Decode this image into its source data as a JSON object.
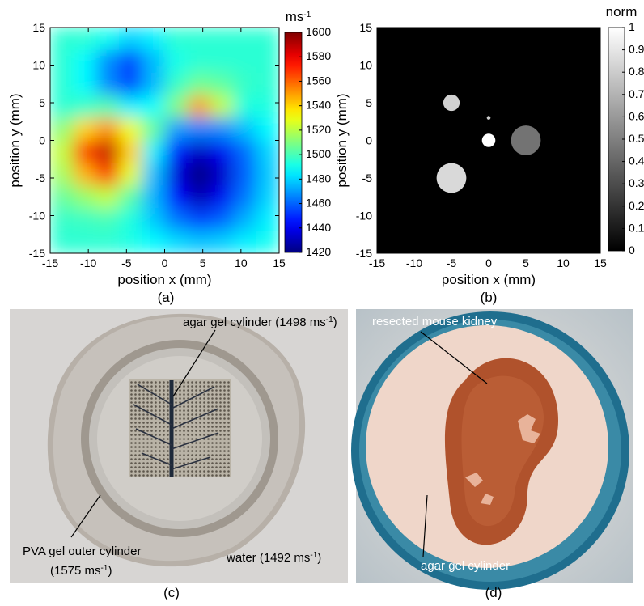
{
  "chart_data": [
    {
      "type": "heatmap",
      "caption": "(a)",
      "xlabel": "position x (mm)",
      "ylabel": "position y (mm)",
      "colorbar_label": {
        "text": "ms",
        "sup": "-1"
      },
      "colormap": "jet",
      "xlim": [
        -15,
        15
      ],
      "ylim": [
        -15,
        15
      ],
      "xticks": [
        -15,
        -10,
        -5,
        0,
        5,
        10,
        15
      ],
      "yticks": [
        -15,
        -10,
        -5,
        0,
        5,
        10,
        15
      ],
      "clim": [
        1420,
        1600
      ],
      "cticks": [
        1420,
        1440,
        1460,
        1480,
        1500,
        1520,
        1540,
        1560,
        1580,
        1600
      ],
      "x": [
        -13.5,
        -10.5,
        -7.5,
        -4.5,
        -1.5,
        1.5,
        4.5,
        7.5,
        10.5,
        13.5
      ],
      "y": [
        13.5,
        10.5,
        7.5,
        4.5,
        1.5,
        -1.5,
        -4.5,
        -7.5,
        -10.5,
        -13.5
      ],
      "z": [
        [
          1495,
          1495,
          1490,
          1480,
          1485,
          1495,
          1495,
          1495,
          1495,
          1495
        ],
        [
          1495,
          1487,
          1467,
          1453,
          1475,
          1491,
          1495,
          1495,
          1495,
          1495
        ],
        [
          1495,
          1487,
          1467,
          1453,
          1475,
          1497,
          1507,
          1504,
          1497,
          1495
        ],
        [
          1495,
          1497,
          1501,
          1485,
          1488,
          1510,
          1550,
          1522,
          1493,
          1493
        ],
        [
          1512,
          1540,
          1552,
          1530,
          1505,
          1470,
          1465,
          1467,
          1476,
          1487
        ],
        [
          1522,
          1568,
          1588,
          1541,
          1485,
          1446,
          1432,
          1440,
          1461,
          1480
        ],
        [
          1516,
          1546,
          1569,
          1528,
          1476,
          1436,
          1420,
          1433,
          1459,
          1478
        ],
        [
          1505,
          1514,
          1522,
          1503,
          1474,
          1443,
          1429,
          1440,
          1463,
          1480
        ],
        [
          1497,
          1498,
          1500,
          1493,
          1478,
          1463,
          1454,
          1459,
          1473,
          1485
        ],
        [
          1495,
          1495,
          1495,
          1492,
          1487,
          1481,
          1477,
          1479,
          1485,
          1490
        ]
      ]
    },
    {
      "type": "discs",
      "caption": "(b)",
      "xlabel": "position x (mm)",
      "ylabel": "position y (mm)",
      "colorbar_label": {
        "text": "norm"
      },
      "colormap": "gray",
      "background": 0,
      "xlim": [
        -15,
        15
      ],
      "ylim": [
        -15,
        15
      ],
      "xticks": [
        -15,
        -10,
        -5,
        0,
        5,
        10,
        15
      ],
      "yticks": [
        -15,
        -10,
        -5,
        0,
        5,
        10,
        15
      ],
      "clim": [
        0,
        1
      ],
      "cticks": [
        0,
        0.1,
        0.2,
        0.3,
        0.4,
        0.5,
        0.6,
        0.7,
        0.8,
        0.9,
        1
      ],
      "x": [
        -5,
        0,
        0,
        5,
        -5
      ],
      "y": [
        5,
        3,
        0,
        0,
        -5
      ],
      "radius": [
        1.1,
        0.25,
        0.9,
        2,
        2
      ],
      "values": [
        0.82,
        0.8,
        1,
        0.45,
        0.85
      ]
    }
  ],
  "photos": [
    {
      "caption": "(c)",
      "annotations": [
        [
          "agar gel cylinder (1498 ms",
          "-1",
          ")"
        ],
        [
          "PVA gel outer cylinder"
        ],
        [
          "(1575 ms",
          "-1",
          ")"
        ],
        [
          "water (1492 ms",
          "-1",
          ")"
        ]
      ]
    },
    {
      "caption": "(d)",
      "annotations": [
        [
          "resected mouse kidney"
        ],
        [
          "agar gel cylinder"
        ]
      ]
    }
  ]
}
